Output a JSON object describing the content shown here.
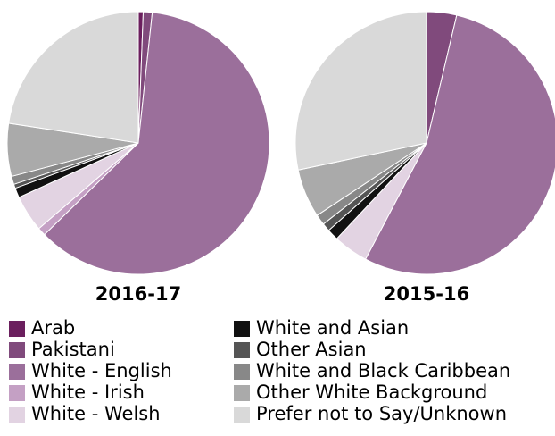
{
  "chart_data": [
    {
      "type": "pie",
      "title": "2016-17",
      "categories": [
        "Arab",
        "Pakistani",
        "White - English",
        "White - Irish",
        "White - Welsh",
        "White and Asian",
        "Other Asian",
        "White and Black Caribbean",
        "Other White Background",
        "Prefer not to Say/Unknown"
      ],
      "values": [
        0.6,
        1.1,
        61,
        1,
        4.5,
        1.2,
        0.5,
        1,
        6.5,
        22.6
      ],
      "colors": [
        "#6b1f5e",
        "#804a7c",
        "#9b6f9b",
        "#c4a0c4",
        "#e2d3e2",
        "#111111",
        "#555555",
        "#888888",
        "#aaaaaa",
        "#d9d9d9"
      ]
    },
    {
      "type": "pie",
      "title": "2015-16",
      "categories": [
        "Arab",
        "Pakistani",
        "White - English",
        "White - Irish",
        "White - Welsh",
        "White and Asian",
        "Other Asian",
        "White and Black Caribbean",
        "Other White Background",
        "Prefer not to Say/Unknown"
      ],
      "values": [
        0,
        3.7,
        54,
        0,
        4.3,
        1.4,
        1,
        1.3,
        6,
        28.3
      ],
      "colors": [
        "#6b1f5e",
        "#804a7c",
        "#9b6f9b",
        "#c4a0c4",
        "#e2d3e2",
        "#111111",
        "#555555",
        "#888888",
        "#aaaaaa",
        "#d9d9d9"
      ]
    }
  ]
}
